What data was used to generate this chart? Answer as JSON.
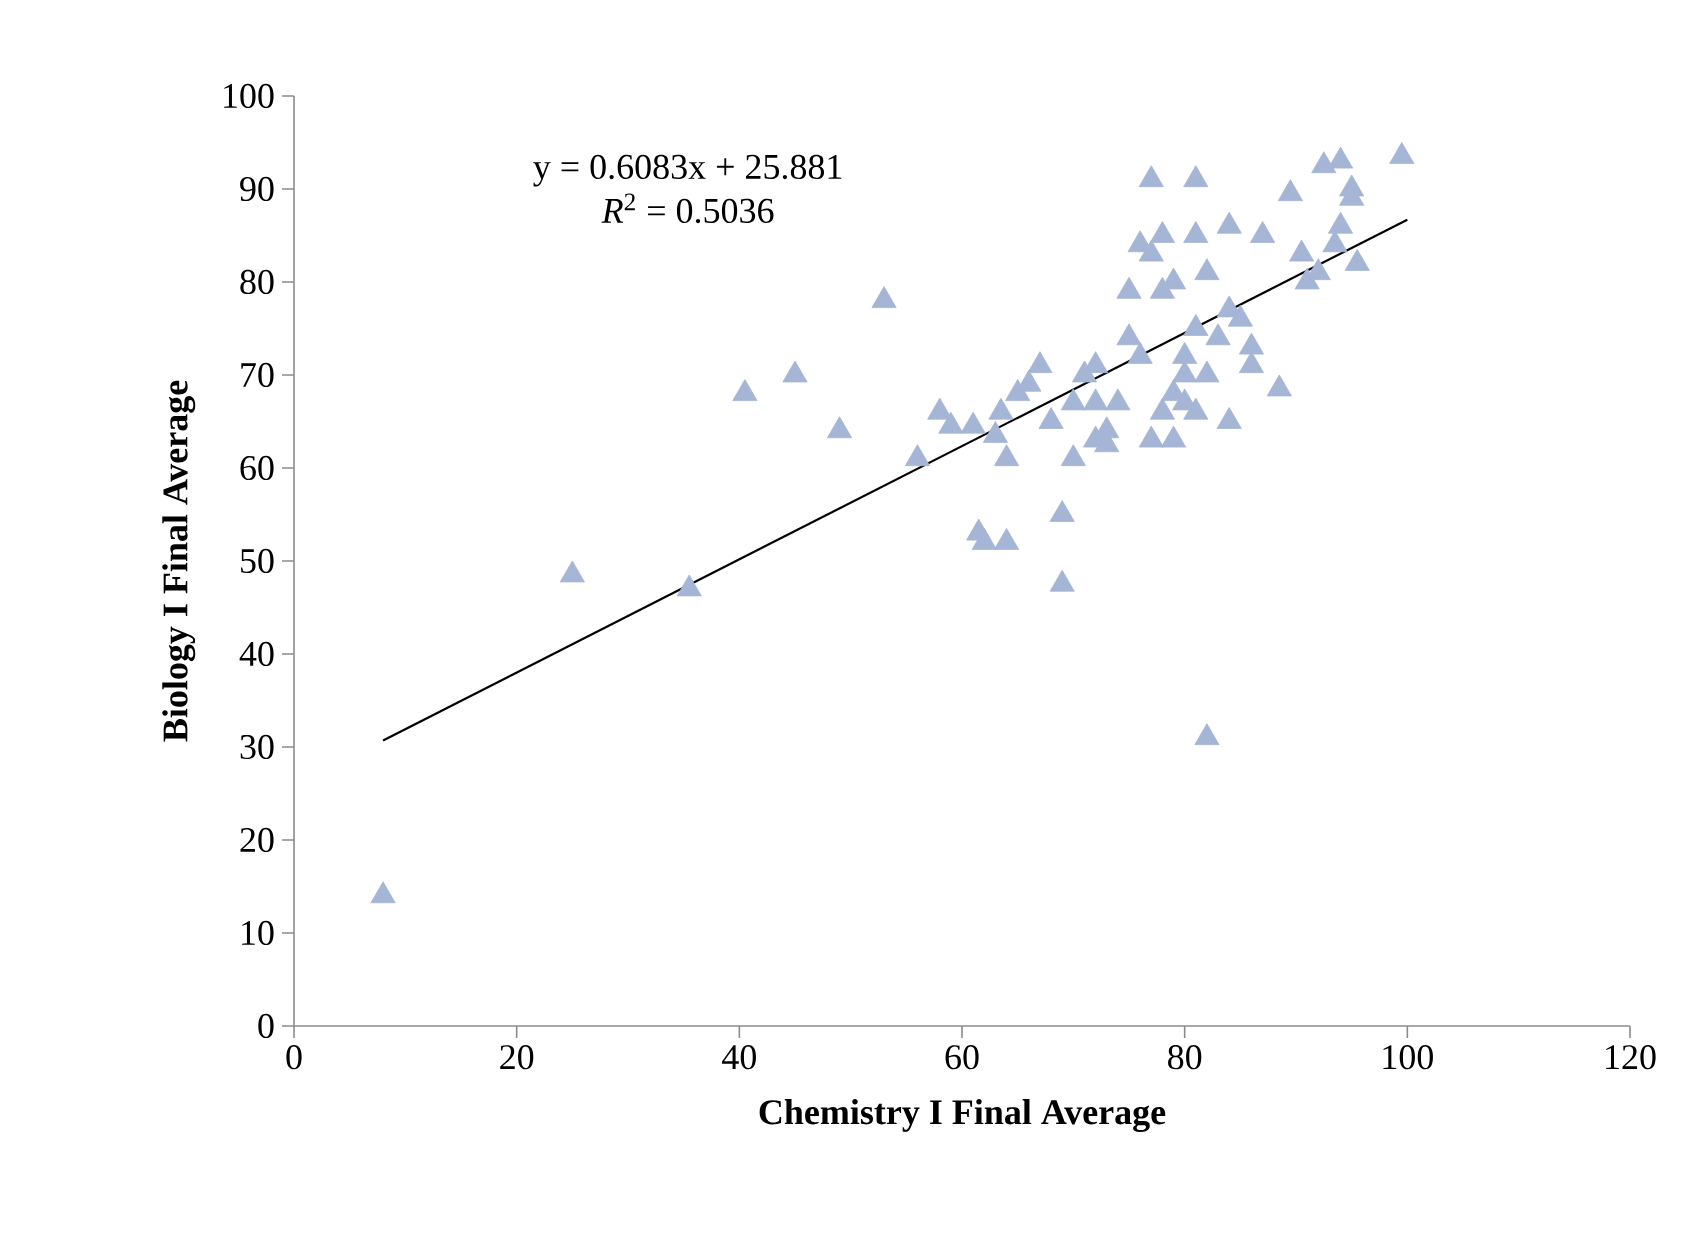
{
  "chart_data": {
    "type": "scatter",
    "xlabel": "Chemistry I Final Average",
    "ylabel": "Biology I Final Average",
    "annotations": [
      "y = 0.6083x + 25.881",
      "*R*$^{2}$ = 0.5036"
    ],
    "xlim": [
      0,
      120
    ],
    "xticks": [
      0,
      20,
      40,
      60,
      80,
      100,
      120
    ],
    "ylim": [
      0,
      100
    ],
    "yticks": [
      0,
      10,
      20,
      30,
      40,
      50,
      60,
      70,
      80,
      90,
      100
    ],
    "grid": false,
    "marker": "triangle",
    "series": [
      {
        "color": "#a5b5d6",
        "x": [
          8,
          25,
          35.5,
          40.5,
          45,
          49,
          53,
          56,
          58,
          59,
          61,
          61.5,
          62,
          63,
          63.5,
          64,
          64,
          65,
          66,
          67,
          68,
          69,
          69,
          70,
          70,
          71,
          72,
          72,
          72,
          73,
          73,
          74,
          75,
          75,
          76,
          76,
          77,
          77,
          77,
          78,
          78,
          78,
          79,
          79,
          79,
          80,
          80,
          80,
          81,
          81,
          81,
          81,
          82,
          82,
          82,
          83,
          84,
          84,
          84,
          85,
          86,
          86,
          87,
          88.5,
          89.5,
          90.5,
          91,
          92,
          92.5,
          93.5,
          94,
          94,
          95,
          95,
          95.5,
          99.5
        ],
        "values": [
          14,
          48.5,
          47,
          68,
          70,
          64,
          78,
          61,
          66,
          64.5,
          64.5,
          53,
          52,
          63.5,
          66,
          52,
          61,
          68,
          69,
          71,
          65,
          55,
          47.5,
          61,
          67,
          70,
          71,
          63,
          67,
          62.5,
          64,
          67,
          74,
          79,
          84,
          72,
          91,
          63,
          83,
          79,
          66,
          85,
          63,
          68,
          80,
          72,
          70,
          67,
          91,
          85,
          66,
          75,
          81,
          70,
          31,
          74,
          65,
          77,
          86,
          76,
          73,
          71,
          85,
          68.5,
          89.5,
          83,
          80,
          81,
          92.5,
          84,
          93,
          86,
          90,
          89,
          82,
          93.5
        ]
      },
      {
        "type": "line",
        "color": "#000000",
        "marker": "none",
        "x": [
          8,
          100
        ],
        "values": [
          30.7,
          86.7
        ]
      }
    ]
  }
}
